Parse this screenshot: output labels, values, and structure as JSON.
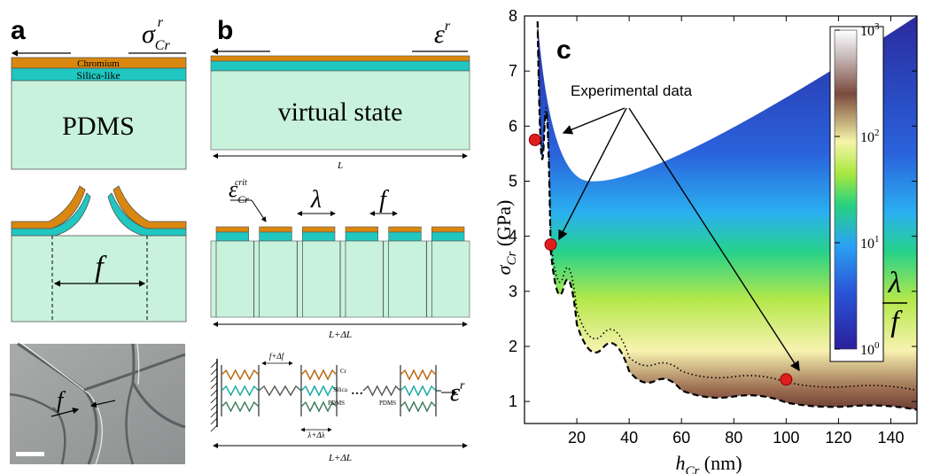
{
  "panels": {
    "a": {
      "letter": "a",
      "stress_symbol": "σ",
      "stress_sub": "Cr",
      "stress_sup": "r",
      "layer_top": "Chromium",
      "layer_mid": "Silica-like",
      "substrate": "PDMS",
      "fragment_label": "f",
      "micrograph_label": "f"
    },
    "b": {
      "letter": "b",
      "strain_symbol": "ε",
      "strain_sup": "r",
      "virtual_label": "virtual state",
      "length_label": "L",
      "crit_symbol": "ε",
      "crit_sub": "Cr",
      "crit_sup": "crit",
      "lambda_label": "λ",
      "f_label": "f",
      "stretched_length": "L+ΔL",
      "spring_f_label": "f+Δf",
      "spring_cr": "Cr",
      "spring_silica": "Silica",
      "spring_pdms": "PDMS",
      "spring_pdms2": "PDMS",
      "spring_lambda": "λ+Δλ",
      "spring_strain": "ε",
      "spring_strain_sup": "r",
      "spring_length": "L+ΔL"
    }
  },
  "colors": {
    "chromium": "#d9870f",
    "silica": "#1fc7c0",
    "pdms": "#c8f2dc",
    "spring_cr": "#b8650a",
    "spring_si": "#14a8a4",
    "spring_pdms": "#3d7a5c",
    "marker": "#e01e1e"
  },
  "chart_data": {
    "type": "heatmap",
    "panel_letter": "c",
    "xlabel_symbol": "h",
    "xlabel_sub": "Cr",
    "xlabel_unit": "(nm)",
    "ylabel_symbol": "σ",
    "ylabel_sub": "Cr",
    "ylabel_unit": "(GPa)",
    "xlim": [
      0,
      150
    ],
    "ylim": [
      0.6,
      8
    ],
    "xticks": [
      "20",
      "40",
      "60",
      "80",
      "100",
      "120",
      "140"
    ],
    "xtick_values": [
      20,
      40,
      60,
      80,
      100,
      120,
      140
    ],
    "yticks": [
      "1",
      "2",
      "3",
      "4",
      "5",
      "6",
      "7",
      "8"
    ],
    "ytick_values": [
      1,
      2,
      3,
      4,
      5,
      6,
      7,
      8
    ],
    "colorbar": {
      "label_num": "λ",
      "label_den": "f",
      "scale": "log",
      "ticks": [
        {
          "base": "10",
          "exp": "0",
          "value": 0
        },
        {
          "base": "10",
          "exp": "1",
          "value": 1
        },
        {
          "base": "10",
          "exp": "2",
          "value": 2
        },
        {
          "base": "10",
          "exp": "3",
          "value": 3
        }
      ]
    },
    "annotation": "Experimental data",
    "experimental_points": [
      {
        "x": 4,
        "y": 5.75
      },
      {
        "x": 10,
        "y": 3.85
      },
      {
        "x": 100,
        "y": 1.4
      }
    ],
    "region": {
      "upper_boundary_min": {
        "x": 25,
        "y": 5.0
      },
      "upper_boundary_at_xmax": {
        "x": 150,
        "y": 8.0
      },
      "lower_dashed_curve": [
        {
          "x": 5,
          "y": 7.9
        },
        {
          "x": 10,
          "y": 3.75
        },
        {
          "x": 20,
          "y": 2.4
        },
        {
          "x": 40,
          "y": 1.55
        },
        {
          "x": 60,
          "y": 1.2
        },
        {
          "x": 100,
          "y": 0.98
        },
        {
          "x": 150,
          "y": 0.85
        }
      ],
      "dotted_curve": [
        {
          "x": 5,
          "y": 7.9
        },
        {
          "x": 10,
          "y": 3.95
        },
        {
          "x": 20,
          "y": 2.65
        },
        {
          "x": 40,
          "y": 1.8
        },
        {
          "x": 60,
          "y": 1.55
        },
        {
          "x": 100,
          "y": 1.35
        },
        {
          "x": 150,
          "y": 1.2
        }
      ]
    }
  }
}
